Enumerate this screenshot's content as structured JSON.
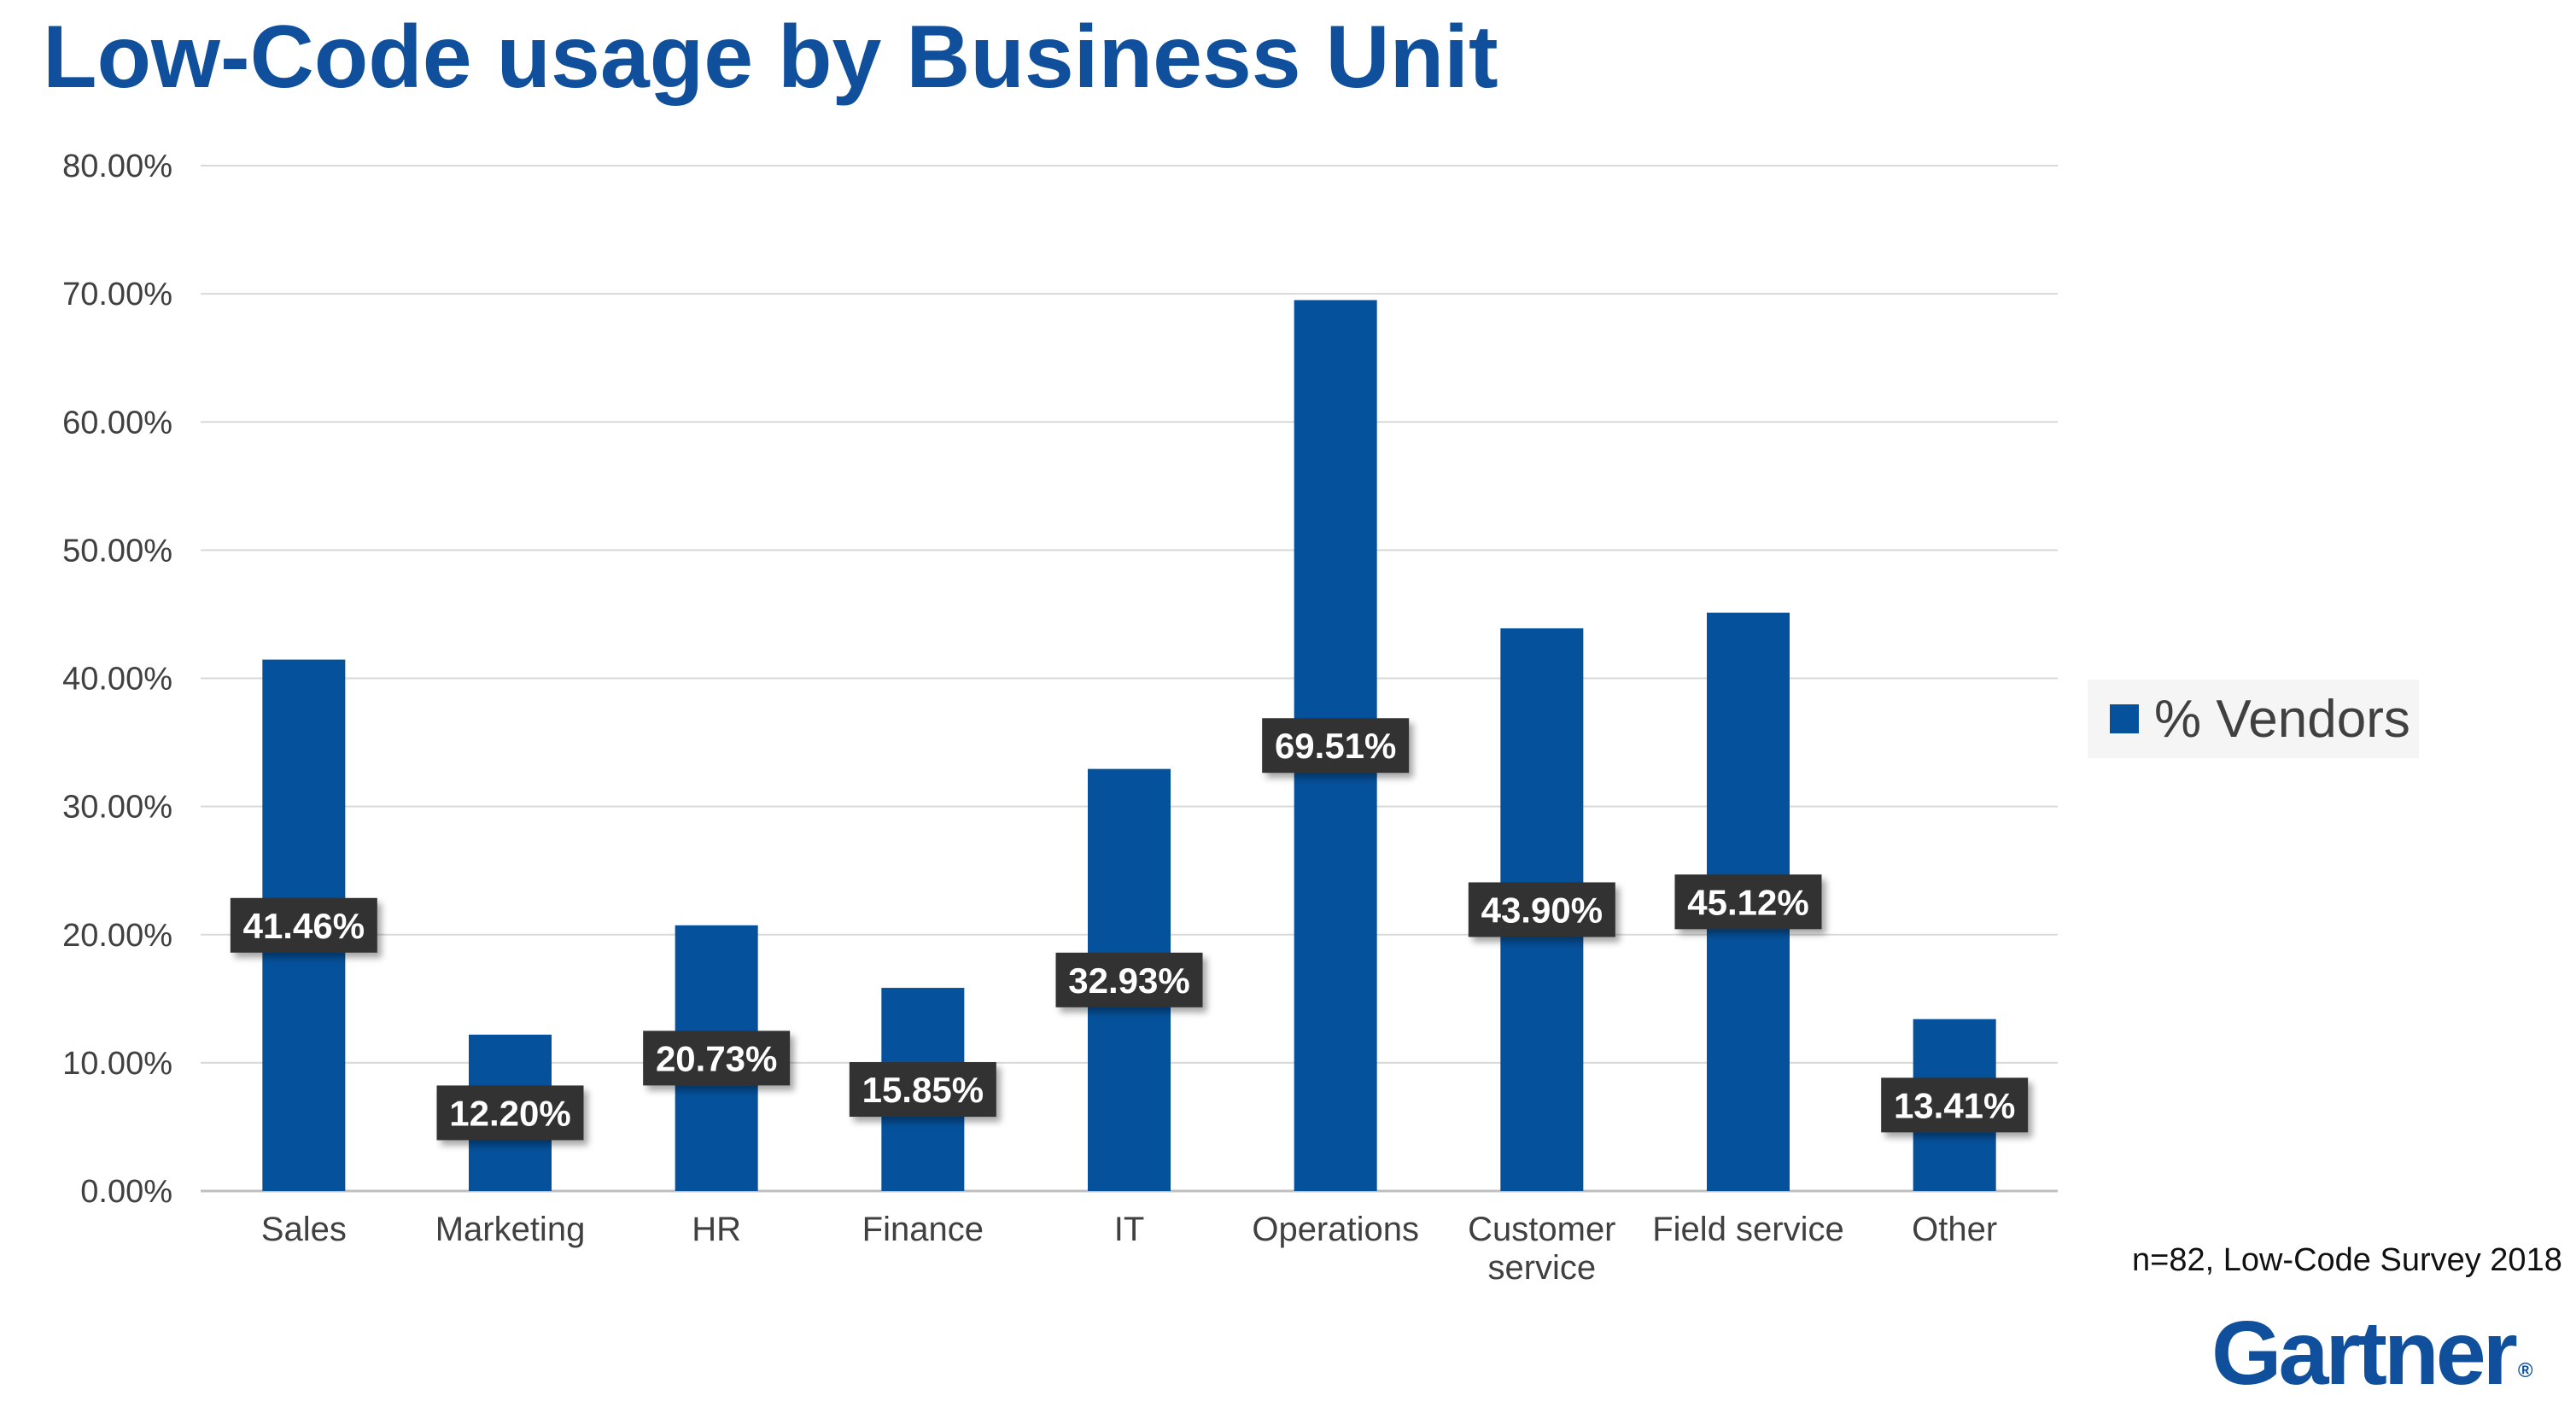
{
  "title": "Low-Code usage by Business Unit",
  "source_note": "n=82, Low-Code Survey 2018",
  "brand": {
    "name": "Gartner",
    "mark": "®"
  },
  "colors": {
    "bar": "#05519B",
    "title": "#0F4F9B",
    "label_bg": "#333333",
    "grid": "#d9d9d9"
  },
  "chart_data": {
    "type": "bar",
    "categories": [
      "Sales",
      "Marketing",
      "HR",
      "Finance",
      "IT",
      "Operations",
      "Customer service",
      "Field service",
      "Other"
    ],
    "category_lines": [
      [
        "Sales"
      ],
      [
        "Marketing"
      ],
      [
        "HR"
      ],
      [
        "Finance"
      ],
      [
        "IT"
      ],
      [
        "Operations"
      ],
      [
        "Customer",
        "service"
      ],
      [
        "Field service"
      ],
      [
        "Other"
      ]
    ],
    "series": [
      {
        "name": "% Vendors",
        "values": [
          41.46,
          12.2,
          20.73,
          15.85,
          32.93,
          69.51,
          43.9,
          45.12,
          13.41
        ]
      }
    ],
    "data_labels": [
      "41.46%",
      "12.20%",
      "20.73%",
      "15.85%",
      "32.93%",
      "69.51%",
      "43.90%",
      "45.12%",
      "13.41%"
    ],
    "yticks": [
      0,
      10,
      20,
      30,
      40,
      50,
      60,
      70,
      80
    ],
    "ytick_labels": [
      "0.00%",
      "10.00%",
      "20.00%",
      "30.00%",
      "40.00%",
      "50.00%",
      "60.00%",
      "70.00%",
      "80.00%"
    ],
    "ylim": [
      0,
      80
    ],
    "grid": true,
    "legend": "right"
  }
}
